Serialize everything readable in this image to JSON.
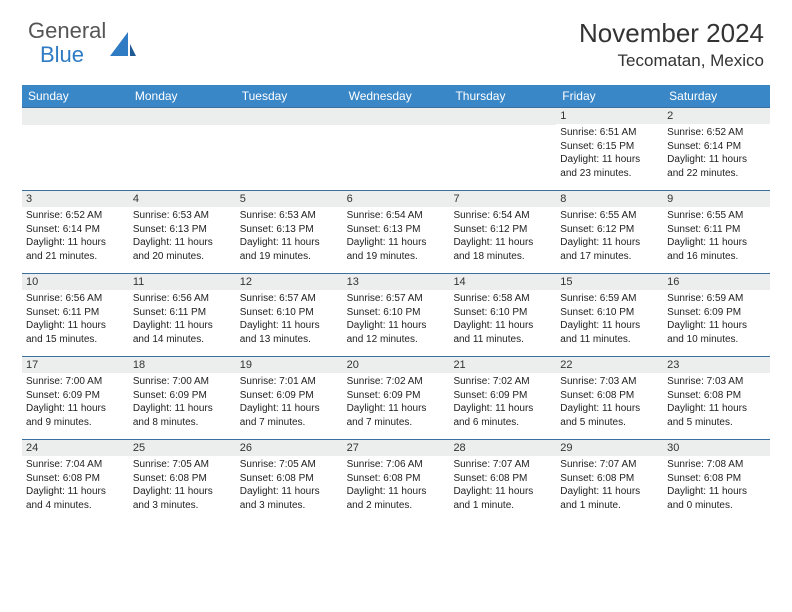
{
  "logo": {
    "text1": "General",
    "text2": "Blue"
  },
  "title": "November 2024",
  "location": "Tecomatan, Mexico",
  "colors": {
    "header_bg": "#3a87c8",
    "header_text": "#ffffff",
    "day_header_bg": "#eceded",
    "row_border": "#3a6fa0",
    "text": "#222222"
  },
  "weekdays": [
    "Sunday",
    "Monday",
    "Tuesday",
    "Wednesday",
    "Thursday",
    "Friday",
    "Saturday"
  ],
  "weeks": [
    [
      null,
      null,
      null,
      null,
      null,
      {
        "n": "1",
        "sr": "6:51 AM",
        "ss": "6:15 PM",
        "dl": "11 hours and 23 minutes."
      },
      {
        "n": "2",
        "sr": "6:52 AM",
        "ss": "6:14 PM",
        "dl": "11 hours and 22 minutes."
      }
    ],
    [
      {
        "n": "3",
        "sr": "6:52 AM",
        "ss": "6:14 PM",
        "dl": "11 hours and 21 minutes."
      },
      {
        "n": "4",
        "sr": "6:53 AM",
        "ss": "6:13 PM",
        "dl": "11 hours and 20 minutes."
      },
      {
        "n": "5",
        "sr": "6:53 AM",
        "ss": "6:13 PM",
        "dl": "11 hours and 19 minutes."
      },
      {
        "n": "6",
        "sr": "6:54 AM",
        "ss": "6:13 PM",
        "dl": "11 hours and 19 minutes."
      },
      {
        "n": "7",
        "sr": "6:54 AM",
        "ss": "6:12 PM",
        "dl": "11 hours and 18 minutes."
      },
      {
        "n": "8",
        "sr": "6:55 AM",
        "ss": "6:12 PM",
        "dl": "11 hours and 17 minutes."
      },
      {
        "n": "9",
        "sr": "6:55 AM",
        "ss": "6:11 PM",
        "dl": "11 hours and 16 minutes."
      }
    ],
    [
      {
        "n": "10",
        "sr": "6:56 AM",
        "ss": "6:11 PM",
        "dl": "11 hours and 15 minutes."
      },
      {
        "n": "11",
        "sr": "6:56 AM",
        "ss": "6:11 PM",
        "dl": "11 hours and 14 minutes."
      },
      {
        "n": "12",
        "sr": "6:57 AM",
        "ss": "6:10 PM",
        "dl": "11 hours and 13 minutes."
      },
      {
        "n": "13",
        "sr": "6:57 AM",
        "ss": "6:10 PM",
        "dl": "11 hours and 12 minutes."
      },
      {
        "n": "14",
        "sr": "6:58 AM",
        "ss": "6:10 PM",
        "dl": "11 hours and 11 minutes."
      },
      {
        "n": "15",
        "sr": "6:59 AM",
        "ss": "6:10 PM",
        "dl": "11 hours and 11 minutes."
      },
      {
        "n": "16",
        "sr": "6:59 AM",
        "ss": "6:09 PM",
        "dl": "11 hours and 10 minutes."
      }
    ],
    [
      {
        "n": "17",
        "sr": "7:00 AM",
        "ss": "6:09 PM",
        "dl": "11 hours and 9 minutes."
      },
      {
        "n": "18",
        "sr": "7:00 AM",
        "ss": "6:09 PM",
        "dl": "11 hours and 8 minutes."
      },
      {
        "n": "19",
        "sr": "7:01 AM",
        "ss": "6:09 PM",
        "dl": "11 hours and 7 minutes."
      },
      {
        "n": "20",
        "sr": "7:02 AM",
        "ss": "6:09 PM",
        "dl": "11 hours and 7 minutes."
      },
      {
        "n": "21",
        "sr": "7:02 AM",
        "ss": "6:09 PM",
        "dl": "11 hours and 6 minutes."
      },
      {
        "n": "22",
        "sr": "7:03 AM",
        "ss": "6:08 PM",
        "dl": "11 hours and 5 minutes."
      },
      {
        "n": "23",
        "sr": "7:03 AM",
        "ss": "6:08 PM",
        "dl": "11 hours and 5 minutes."
      }
    ],
    [
      {
        "n": "24",
        "sr": "7:04 AM",
        "ss": "6:08 PM",
        "dl": "11 hours and 4 minutes."
      },
      {
        "n": "25",
        "sr": "7:05 AM",
        "ss": "6:08 PM",
        "dl": "11 hours and 3 minutes."
      },
      {
        "n": "26",
        "sr": "7:05 AM",
        "ss": "6:08 PM",
        "dl": "11 hours and 3 minutes."
      },
      {
        "n": "27",
        "sr": "7:06 AM",
        "ss": "6:08 PM",
        "dl": "11 hours and 2 minutes."
      },
      {
        "n": "28",
        "sr": "7:07 AM",
        "ss": "6:08 PM",
        "dl": "11 hours and 1 minute."
      },
      {
        "n": "29",
        "sr": "7:07 AM",
        "ss": "6:08 PM",
        "dl": "11 hours and 1 minute."
      },
      {
        "n": "30",
        "sr": "7:08 AM",
        "ss": "6:08 PM",
        "dl": "11 hours and 0 minutes."
      }
    ]
  ],
  "labels": {
    "sunrise": "Sunrise:",
    "sunset": "Sunset:",
    "daylight": "Daylight:"
  }
}
